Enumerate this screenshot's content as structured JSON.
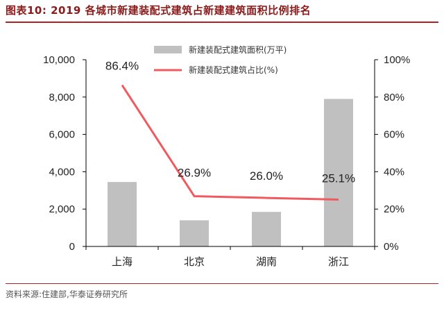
{
  "title": "图表10:   2019 各城市新建装配式建筑占新建建筑面积比例排名",
  "source": "资料来源:住建部,华泰证券研究所",
  "colors": {
    "bar": "#c0c0c0",
    "line": "#f05a5f",
    "axis": "#000000",
    "title": "#8b1a1a"
  },
  "chart_data": {
    "type": "bar",
    "categories": [
      "上海",
      "北京",
      "湖南",
      "浙江"
    ],
    "series": [
      {
        "name": "新建装配式建筑面积(万平)",
        "type": "bar",
        "axis": "left",
        "values": [
          3450,
          1400,
          1850,
          7900
        ]
      },
      {
        "name": "新建装配式建筑占比(%)",
        "type": "line",
        "axis": "right",
        "values": [
          86.4,
          26.9,
          26.0,
          25.1
        ],
        "labels": [
          "86.4%",
          "26.9%",
          "26.0%",
          "25.1%"
        ]
      }
    ],
    "y_left": {
      "ylim": [
        0,
        10000
      ],
      "ticks": [
        "0",
        "2,000",
        "4,000",
        "6,000",
        "8,000",
        "10,000"
      ],
      "tick_values": [
        0,
        2000,
        4000,
        6000,
        8000,
        10000
      ]
    },
    "y_right": {
      "ylim": [
        0,
        100
      ],
      "ticks": [
        "0%",
        "20%",
        "40%",
        "60%",
        "80%",
        "100%"
      ],
      "tick_values": [
        0,
        20,
        40,
        60,
        80,
        100
      ]
    },
    "legend_position": "top-center"
  }
}
